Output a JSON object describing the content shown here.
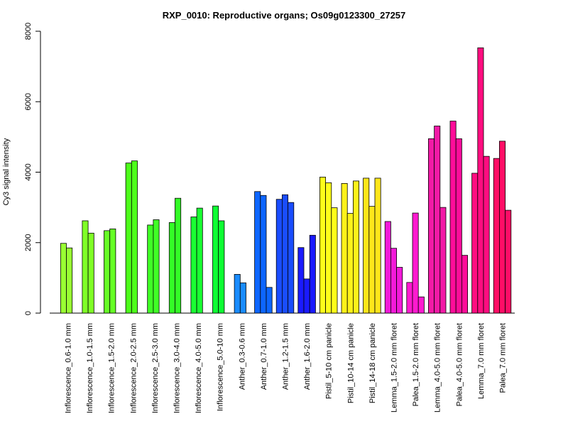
{
  "chart_data": {
    "type": "bar",
    "title": "RXP_0010: Reproductive organs; Os09g0123300_27257",
    "xlabel": "",
    "ylabel": "Cy3 signal intensity",
    "ylim": [
      0,
      8000
    ],
    "yticks": [
      0,
      2000,
      4000,
      6000,
      8000
    ],
    "grid": false,
    "legend": "none",
    "categories": [
      "Inflorescence_0.6-1.0 mm",
      "Inflorescence_1.0-1.5 mm",
      "Inflorescence_1.5-2.0 mm",
      "Inflorescence_2.0-2.5 mm",
      "Inflorescence_2.5-3.0 mm",
      "Inflorescence_3.0-4.0 mm",
      "Inflorescence_4.0-5.0 mm",
      "Inflorescence_5.0-10 mm",
      "Anther_0.3-0.6 mm",
      "Anther_0.7-1.0 mm",
      "Anther_1.2-1.5 mm",
      "Anther_1.6-2.0 mm",
      "Pistil_5-10 cm panicle",
      "Pistil_10-14 cm panicle",
      "Pistil_14-18 cm panicle",
      "Lemma_1.5-2.0 mm floret",
      "Palea_1.5-2.0 mm floret",
      "Lemma_4.0-5.0 mm floret",
      "Palea_4.0-5.0 mm floret",
      "Lemma_7.0 mm floret",
      "Palea_7.0 mm floret"
    ],
    "groups": [
      {
        "values": [
          1980,
          1850
        ],
        "color": "#99ff33"
      },
      {
        "values": [
          2620,
          2270
        ],
        "color": "#7fff26"
      },
      {
        "values": [
          2340,
          2390
        ],
        "color": "#66ff26"
      },
      {
        "values": [
          4260,
          4320
        ],
        "color": "#4dff1a"
      },
      {
        "values": [
          2500,
          2650
        ],
        "color": "#40ff26"
      },
      {
        "values": [
          2570,
          3260
        ],
        "color": "#33ff26"
      },
      {
        "values": [
          2730,
          2980
        ],
        "color": "#1aff33"
      },
      {
        "values": [
          3040,
          2620
        ],
        "color": "#0dff33"
      },
      {
        "values": [
          1100,
          860
        ],
        "color": "#1a8cff"
      },
      {
        "values": [
          3450,
          3340,
          730
        ],
        "color": "#0d66ff"
      },
      {
        "values": [
          3230,
          3360,
          3140
        ],
        "color": "#1a4dff"
      },
      {
        "values": [
          1860,
          970,
          2210
        ],
        "color": "#1a1aff"
      },
      {
        "values": [
          3860,
          3700,
          2990
        ],
        "color": "#ffff1a"
      },
      {
        "values": [
          3680,
          2830,
          3750
        ],
        "color": "#fff21a"
      },
      {
        "values": [
          3830,
          3030,
          3830
        ],
        "color": "#ffe61a"
      },
      {
        "values": [
          2600,
          1840,
          1300
        ],
        "color": "#f21ad9"
      },
      {
        "values": [
          870,
          2840,
          460
        ],
        "color": "#ff1ad0"
      },
      {
        "values": [
          4950,
          5310,
          3000
        ],
        "color": "#f21aa6"
      },
      {
        "values": [
          5450,
          4950,
          1640
        ],
        "color": "#ff0d99"
      },
      {
        "values": [
          3970,
          7530,
          4450
        ],
        "color": "#ff0d80"
      },
      {
        "values": [
          4390,
          4880,
          2920
        ],
        "color": "#ff0d66"
      }
    ]
  }
}
